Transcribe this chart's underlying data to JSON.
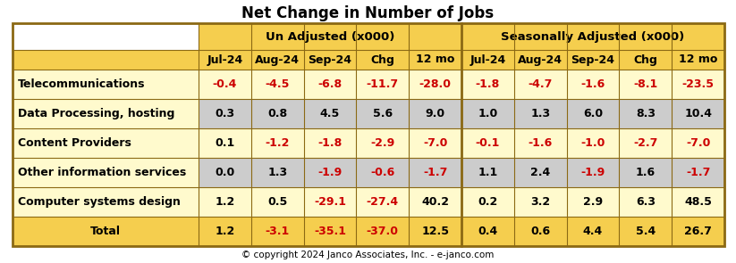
{
  "title": "Net Change in Number of Jobs",
  "copyright": "© copyright 2024 Janco Associates, Inc. - e-janco.com",
  "col_header_group": [
    "Un Adjusted (x000)",
    "Seasonally Adjusted (x000)"
  ],
  "col_header_sub": [
    "Jul-24",
    "Aug-24",
    "Sep-24",
    "Chg",
    "12 mo",
    "Jul-24",
    "Aug-24",
    "Sep-24",
    "Chg",
    "12 mo"
  ],
  "row_labels": [
    "Telecommunications",
    "Data Processing, hosting",
    "Content Providers",
    "Other information services",
    "Computer systems design",
    "Total"
  ],
  "data": [
    [
      "-0.4",
      "-4.5",
      "-6.8",
      "-11.7",
      "-28.0",
      "-1.8",
      "-4.7",
      "-1.6",
      "-8.1",
      "-23.5"
    ],
    [
      "0.3",
      "0.8",
      "4.5",
      "5.6",
      "9.0",
      "1.0",
      "1.3",
      "6.0",
      "8.3",
      "10.4"
    ],
    [
      "0.1",
      "-1.2",
      "-1.8",
      "-2.9",
      "-7.0",
      "-0.1",
      "-1.6",
      "-1.0",
      "-2.7",
      "-7.0"
    ],
    [
      "0.0",
      "1.3",
      "-1.9",
      "-0.6",
      "-1.7",
      "1.1",
      "2.4",
      "-1.9",
      "1.6",
      "-1.7"
    ],
    [
      "1.2",
      "0.5",
      "-29.1",
      "-27.4",
      "40.2",
      "0.2",
      "3.2",
      "2.9",
      "6.3",
      "48.5"
    ],
    [
      "1.2",
      "-3.1",
      "-35.1",
      "-37.0",
      "12.5",
      "0.4",
      "0.6",
      "4.4",
      "5.4",
      "26.7"
    ]
  ],
  "header_bg_group": "#F5CE4E",
  "row_bg_odd": "#FFFACD",
  "row_bg_even": "#CCCCCC",
  "total_bg": "#F5CE4E",
  "label_col_bg_odd": "#FFFACD",
  "label_col_bg_total": "#F5CE4E",
  "negative_color": "#CC0000",
  "positive_color": "#000000",
  "border_color": "#8B6914",
  "title_fontsize": 12,
  "header_fontsize": 9,
  "data_fontsize": 9,
  "label_fontsize": 9
}
